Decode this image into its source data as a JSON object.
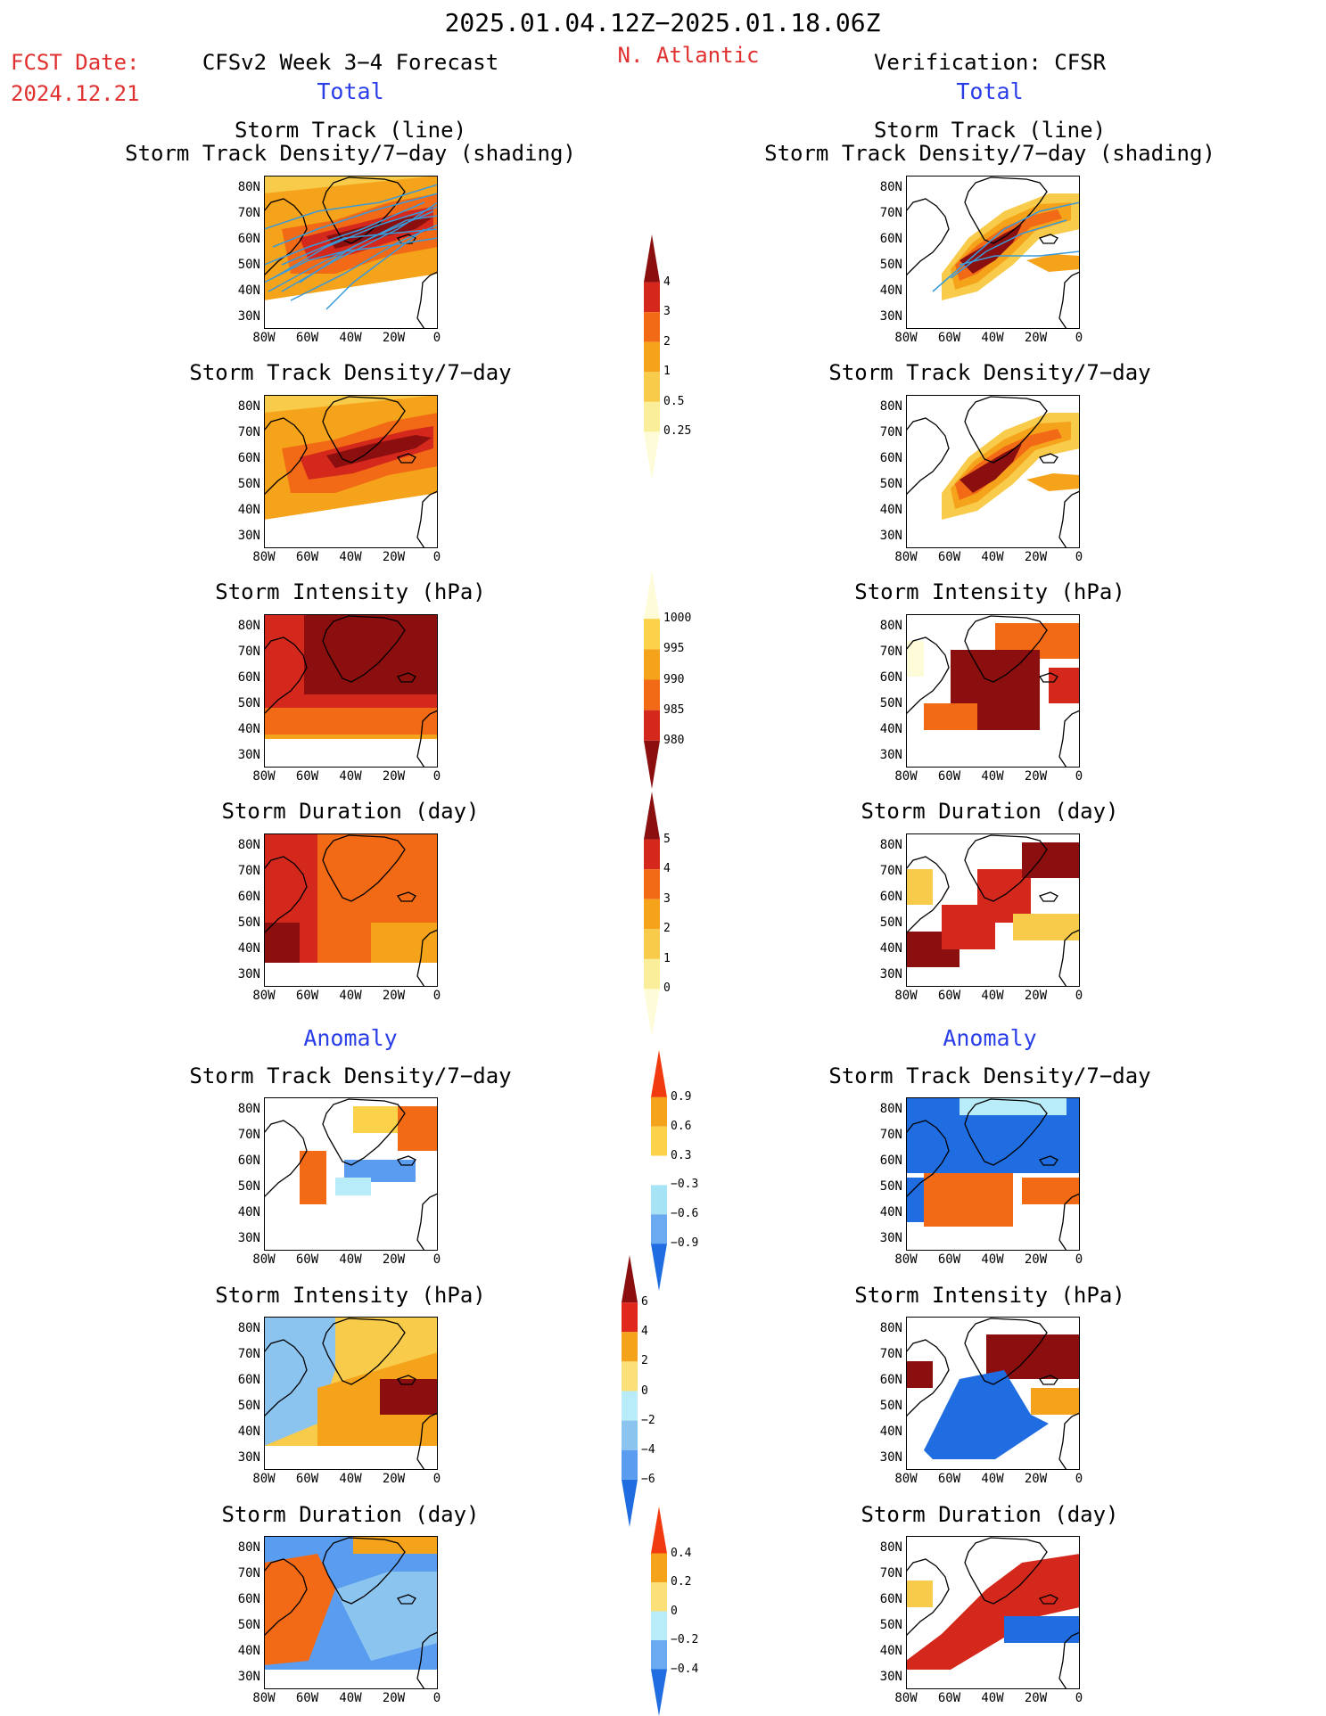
{
  "header": {
    "date_range": "2025.01.04.12Z−2025.01.18.06Z",
    "region": "N. Atlantic",
    "fcst_date_label": "FCST Date:",
    "fcst_date_value": "2024.12.21",
    "left_title": "CFSv2 Week 3−4 Forecast",
    "right_title": "Verification: CFSR"
  },
  "section_labels": {
    "total": "Total",
    "anomaly": "Anomaly"
  },
  "titles": {
    "track_line": "Storm Track (line)",
    "track_density_shading": "Storm Track Density/7−day (shading)",
    "track_density": "Storm Track Density/7−day",
    "intensity": "Storm Intensity (hPa)",
    "duration": "Storm Duration (day)"
  },
  "axes": {
    "lat_labels": [
      "80N",
      "70N",
      "60N",
      "50N",
      "40N",
      "30N"
    ],
    "lon_labels": [
      "80W",
      "60W",
      "40W",
      "20W",
      "0"
    ]
  },
  "colorbars": {
    "density_total": {
      "labels": [
        "4",
        "3",
        "2",
        "1",
        "0.5",
        "0.25"
      ],
      "colors": [
        "#8b0f0f",
        "#d4281c",
        "#f26a15",
        "#f6a31c",
        "#f8cb4a",
        "#fbee9a",
        "#fefcd8"
      ]
    },
    "intensity_total": {
      "labels": [
        "1000",
        "995",
        "990",
        "985",
        "980"
      ],
      "colors": [
        "#fefcd8",
        "#fbd24a",
        "#f6a31c",
        "#f26a15",
        "#d4281c",
        "#8b0f0f"
      ]
    },
    "duration_total": {
      "labels": [
        "5",
        "4",
        "3",
        "2",
        "1",
        "0"
      ],
      "colors": [
        "#8b0f0f",
        "#d4281c",
        "#f26a15",
        "#f6a31c",
        "#f8cb4a",
        "#fbee9a",
        "#fefcd8"
      ]
    },
    "density_anom": {
      "labels": [
        "0.9",
        "0.6",
        "0.3",
        "−0.3",
        "−0.6",
        "−0.9"
      ],
      "colors": [
        "#f23a10",
        "#f6a31c",
        "#fbd24a",
        "#ffffff",
        "#a6e3f5",
        "#6aaaf0",
        "#1f6de0"
      ]
    },
    "intensity_anom": {
      "labels": [
        "6",
        "4",
        "2",
        "0",
        "−2",
        "−4",
        "−6"
      ],
      "colors": [
        "#8b0f0f",
        "#e0281c",
        "#f6a31c",
        "#fbe07a",
        "#b8ecf8",
        "#8cc4f0",
        "#5a9cf0",
        "#1f6de0"
      ]
    },
    "duration_anom": {
      "labels": [
        "0.4",
        "0.2",
        "0",
        "−0.2",
        "−0.4"
      ],
      "colors": [
        "#f23a10",
        "#f6a31c",
        "#fbe07a",
        "#b8ecf8",
        "#6aaaf0",
        "#1f6de0"
      ]
    }
  }
}
